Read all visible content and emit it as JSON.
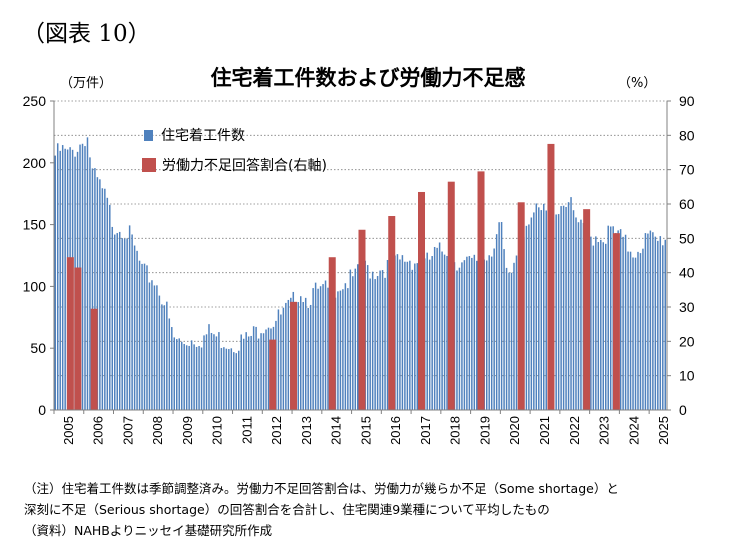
{
  "figure_label": "（図表 10）",
  "notes": [
    "（注）住宅着工件数は季節調整済み。労働力不足回答割合は、労働力が幾らか不足（Some shortage）と",
    "深刻に不足（Serious shortage）の回答割合を合計し、住宅関連9業種について平均したもの",
    "（資料）NAHBよりニッセイ基礎研究所作成"
  ],
  "chart_data": {
    "type": "bar",
    "title": "住宅着工件数および労働力不足感",
    "y_left_unit": "（万件）",
    "y_right_unit": "（%）",
    "y_left": {
      "min": 0,
      "max": 250,
      "ticks": [
        0,
        50,
        100,
        150,
        200,
        250
      ]
    },
    "y_right": {
      "min": 0,
      "max": 90,
      "ticks": [
        0,
        10,
        20,
        30,
        40,
        50,
        60,
        70,
        80,
        90
      ]
    },
    "x_ticks": [
      "2005",
      "2006",
      "2007",
      "2008",
      "2009",
      "2010",
      "2011",
      "2012",
      "2013",
      "2014",
      "2015",
      "2016",
      "2017",
      "2018",
      "2019",
      "2020",
      "2021",
      "2022",
      "2023",
      "2024",
      "2025"
    ],
    "x_range": [
      2005.0,
      2025.6
    ],
    "legend": [
      "住宅着工件数",
      "労働力不足回答割合(右軸)"
    ],
    "colors": {
      "housing": "#4f81bd",
      "shortage": "#c0504d"
    },
    "housing_starts_anchors": [
      [
        2005.0,
        205
      ],
      [
        2005.25,
        210
      ],
      [
        2005.5,
        206
      ],
      [
        2005.75,
        212
      ],
      [
        2006.0,
        218
      ],
      [
        2006.1,
        225
      ],
      [
        2006.3,
        190
      ],
      [
        2006.5,
        183
      ],
      [
        2006.75,
        170
      ],
      [
        2007.0,
        150
      ],
      [
        2007.3,
        148
      ],
      [
        2007.5,
        143
      ],
      [
        2007.75,
        128
      ],
      [
        2008.0,
        110
      ],
      [
        2008.3,
        107
      ],
      [
        2008.5,
        100
      ],
      [
        2008.75,
        85
      ],
      [
        2009.0,
        58
      ],
      [
        2009.3,
        54
      ],
      [
        2009.5,
        57
      ],
      [
        2009.75,
        58
      ],
      [
        2010.0,
        58
      ],
      [
        2010.25,
        63
      ],
      [
        2010.5,
        58
      ],
      [
        2010.75,
        56
      ],
      [
        2011.0,
        54
      ],
      [
        2011.5,
        57
      ],
      [
        2011.75,
        62
      ],
      [
        2012.0,
        70
      ],
      [
        2012.5,
        73
      ],
      [
        2013.0,
        85
      ],
      [
        2013.25,
        98
      ],
      [
        2013.5,
        90
      ],
      [
        2013.75,
        95
      ],
      [
        2014.0,
        95
      ],
      [
        2014.5,
        100
      ],
      [
        2014.75,
        103
      ],
      [
        2015.0,
        105
      ],
      [
        2015.5,
        115
      ],
      [
        2015.75,
        112
      ],
      [
        2016.0,
        115
      ],
      [
        2016.5,
        118
      ],
      [
        2016.75,
        122
      ],
      [
        2017.0,
        122
      ],
      [
        2017.5,
        118
      ],
      [
        2017.75,
        125
      ],
      [
        2018.0,
        128
      ],
      [
        2018.25,
        132
      ],
      [
        2018.5,
        122
      ],
      [
        2018.75,
        117
      ],
      [
        2019.0,
        118
      ],
      [
        2019.5,
        124
      ],
      [
        2019.75,
        133
      ],
      [
        2020.0,
        152
      ],
      [
        2020.25,
        100
      ],
      [
        2020.5,
        122
      ],
      [
        2020.75,
        145
      ],
      [
        2021.0,
        160
      ],
      [
        2021.25,
        158
      ],
      [
        2021.5,
        160
      ],
      [
        2021.75,
        160
      ],
      [
        2022.0,
        165
      ],
      [
        2022.25,
        172
      ],
      [
        2022.5,
        155
      ],
      [
        2022.75,
        145
      ],
      [
        2023.0,
        140
      ],
      [
        2023.25,
        142
      ],
      [
        2023.5,
        140
      ],
      [
        2023.75,
        145
      ],
      [
        2024.0,
        140
      ],
      [
        2024.25,
        133
      ],
      [
        2024.5,
        128
      ],
      [
        2024.75,
        135
      ],
      [
        2025.0,
        140
      ],
      [
        2025.25,
        135
      ],
      [
        2025.5,
        140
      ]
    ],
    "labor_shortage": [
      {
        "x": 2005.55,
        "value": 44.5
      },
      {
        "x": 2005.8,
        "value": 41.5
      },
      {
        "x": 2006.35,
        "value": 29.5
      },
      {
        "x": 2012.35,
        "value": 20.5
      },
      {
        "x": 2013.05,
        "value": 31.5
      },
      {
        "x": 2014.35,
        "value": 44.5
      },
      {
        "x": 2015.35,
        "value": 52.5
      },
      {
        "x": 2016.35,
        "value": 56.5
      },
      {
        "x": 2017.35,
        "value": 63.5
      },
      {
        "x": 2018.35,
        "value": 66.5
      },
      {
        "x": 2019.35,
        "value": 69.5
      },
      {
        "x": 2020.7,
        "value": 60.5
      },
      {
        "x": 2021.7,
        "value": 77.5
      },
      {
        "x": 2022.9,
        "value": 58.5
      },
      {
        "x": 2023.9,
        "value": 51.5
      }
    ]
  }
}
